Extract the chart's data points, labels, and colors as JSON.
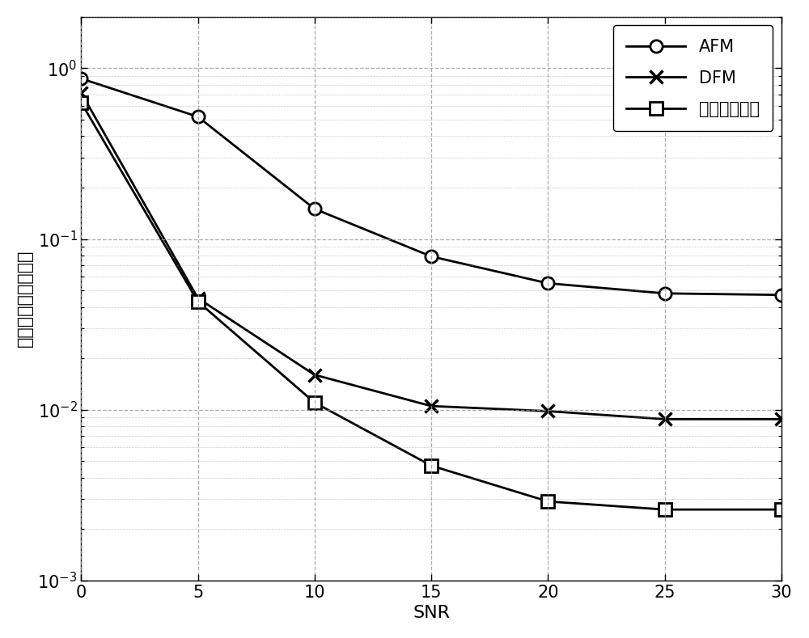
{
  "snr": [
    0,
    5,
    10,
    15,
    20,
    25,
    30
  ],
  "AFM": [
    0.87,
    0.52,
    0.15,
    0.079,
    0.055,
    0.048,
    0.047
  ],
  "DFM": [
    0.72,
    0.045,
    0.016,
    0.0105,
    0.0098,
    0.0088,
    0.0088
  ],
  "hybrid": [
    0.63,
    0.043,
    0.011,
    0.0047,
    0.0029,
    0.0026,
    0.0026
  ],
  "line_color": "#000000",
  "xlabel": "SNR",
  "ylabel": "用户对安全中断概率",
  "legend_labels": [
    "AFM",
    "DFM",
    "混合中继协议"
  ],
  "ylim_bottom": 0.001,
  "ylim_top": 2.0,
  "xlim_left": 0,
  "xlim_right": 30,
  "label_fontsize": 16,
  "legend_fontsize": 15,
  "tick_fontsize": 15,
  "background_color": "#ffffff",
  "grid_color": "#999999"
}
